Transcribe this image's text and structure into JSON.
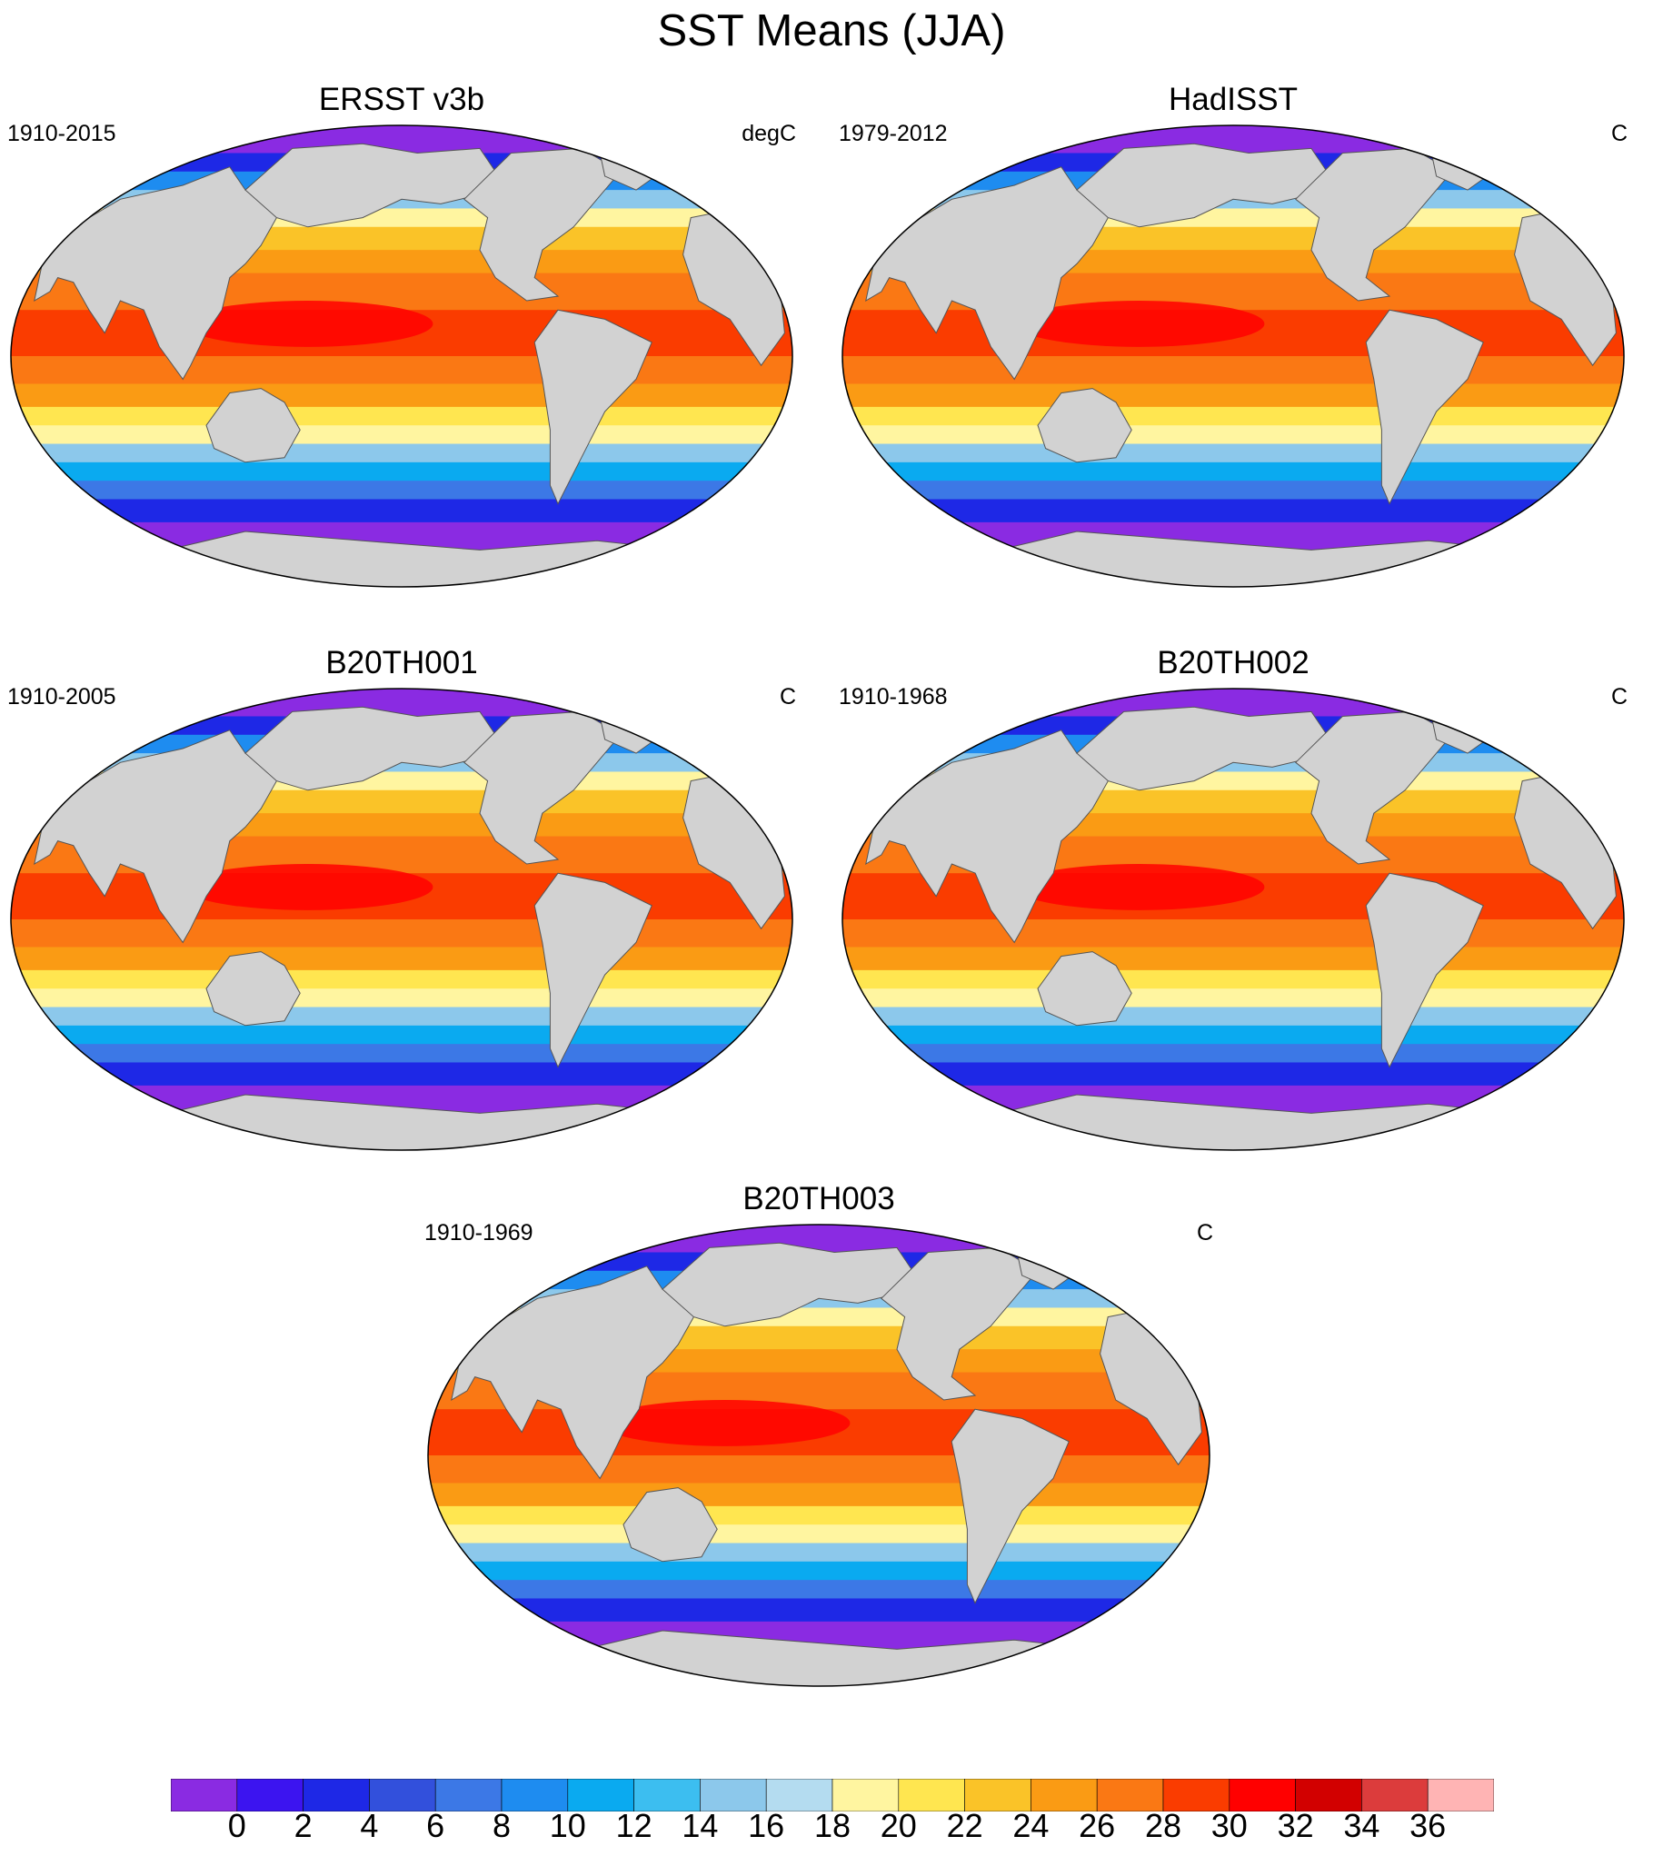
{
  "title": "SST Means (JJA)",
  "panels": [
    {
      "title": "ERSST v3b",
      "period": "1910-2015",
      "units": "degC"
    },
    {
      "title": "HadISST",
      "period": "1979-2012",
      "units": "C"
    },
    {
      "title": "B20TH001",
      "period": "1910-2005",
      "units": "C"
    },
    {
      "title": "B20TH002",
      "period": "1910-1968",
      "units": "C"
    },
    {
      "title": "B20TH003",
      "period": "1910-1969",
      "units": "C"
    }
  ],
  "colorbar": {
    "labels": [
      "0",
      "2",
      "4",
      "6",
      "8",
      "10",
      "12",
      "14",
      "16",
      "18",
      "20",
      "22",
      "24",
      "26",
      "28",
      "30",
      "32",
      "34",
      "36"
    ],
    "colors": [
      "#8a2be2",
      "#3c14f0",
      "#1e28e6",
      "#3250dc",
      "#3c78e6",
      "#1e8cf0",
      "#0aaaf0",
      "#3cbef0",
      "#8cc8eb",
      "#b4dcf0",
      "#fff5a0",
      "#ffe650",
      "#fac328",
      "#fa9b14",
      "#fa7814",
      "#fa3c00",
      "#ff0000",
      "#d20000",
      "#dc3c3c",
      "#ffb4b4"
    ],
    "land_color": "#d2d2d2"
  }
}
